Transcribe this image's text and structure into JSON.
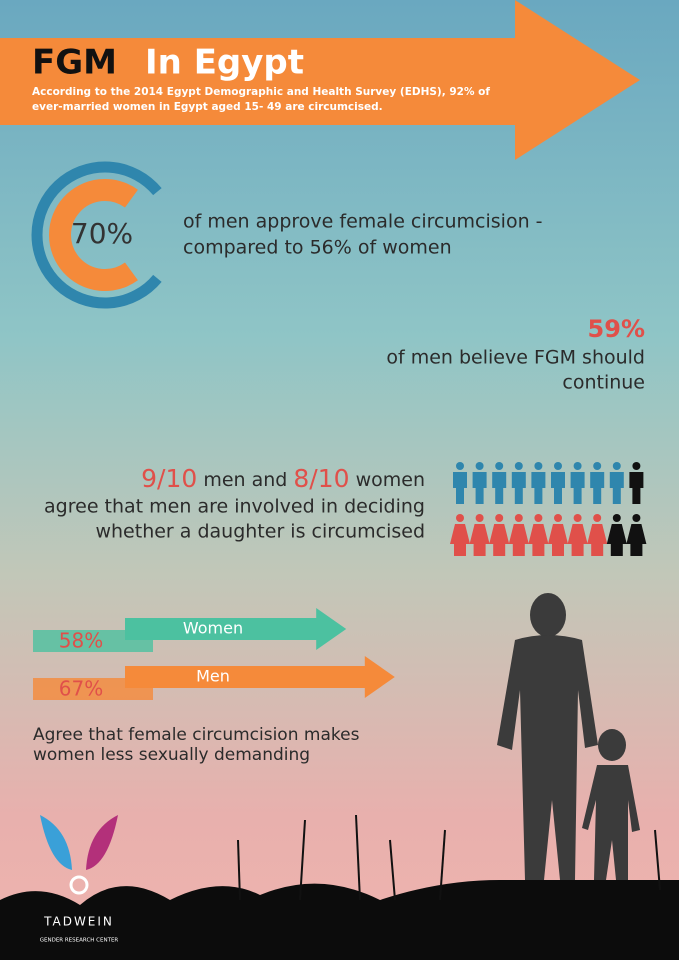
{
  "header": {
    "title_part1": "FGM",
    "title_part2": "In Egypt",
    "subtitle_lines": [
      "According to the 2014 Egypt Demographic and Health Survey (EDHS), 92% of",
      "ever-married women in Egypt aged 15- 49 are circumcised."
    ]
  },
  "stat1": {
    "value": 70,
    "value_label": "70%",
    "lines": [
      "of men approve female circumcision -",
      "compared to 56% of women"
    ]
  },
  "stat2": {
    "value_label": "59%",
    "lines": [
      "of men believe FGM should",
      "continue"
    ]
  },
  "stat3": {
    "men": {
      "value_label": "9/10",
      "count": 9,
      "total": 10,
      "text": " men and "
    },
    "women": {
      "value_label": "8/10",
      "count": 8,
      "total": 10,
      "text": " women"
    },
    "lines": [
      "agree that men are involved in deciding",
      "whether a daughter is circumcised"
    ]
  },
  "stat4": {
    "bars": [
      {
        "name": "Women",
        "value": 58,
        "value_label": "58%",
        "color": "#4cc1a0"
      },
      {
        "name": "Men",
        "value": 67,
        "value_label": "67%",
        "color": "#f58a3a"
      }
    ],
    "lines": [
      "Agree that female circumcision makes",
      "women less sexually demanding"
    ]
  },
  "logo": {
    "name": "TADWEIN",
    "tagline": "GENDER RESEARCH CENTER"
  }
}
